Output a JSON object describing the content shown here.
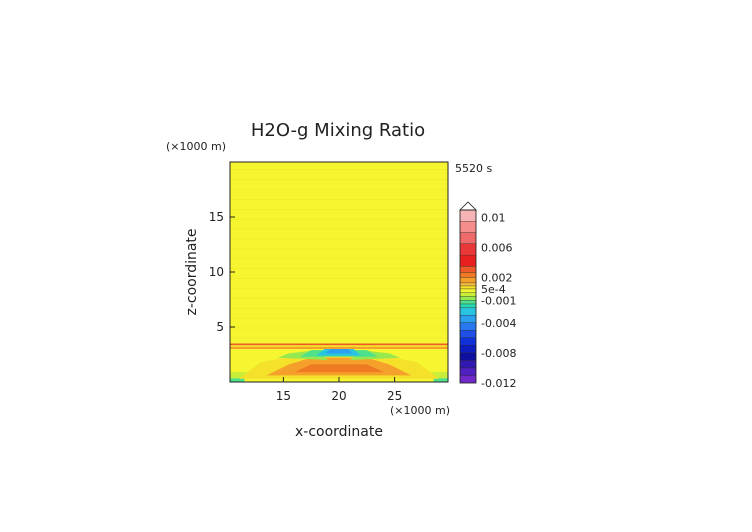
{
  "chart_data": {
    "type": "heatmap",
    "title": "H2O-g Mixing Ratio",
    "time_label": "5520 s",
    "xlabel": "x-coordinate",
    "ylabel": "z-coordinate",
    "x_unit": "(×1000 m)",
    "y_unit": "(×1000 m)",
    "xlim": [
      10.2,
      29.8
    ],
    "ylim": [
      0,
      20
    ],
    "x_ticks": [
      15,
      20,
      25
    ],
    "y_ticks": [
      5,
      10,
      15
    ],
    "colorbar": {
      "labels": [
        "0.01",
        "0.006",
        "0.002",
        "5e-4",
        "-0.001",
        "-0.004",
        "-0.008",
        "-0.012"
      ],
      "label_values": [
        0.01,
        0.006,
        0.002,
        0.0005,
        -0.001,
        -0.004,
        -0.008,
        -0.012
      ],
      "range": [
        -0.012,
        0.011
      ],
      "extend": "max",
      "levels": [
        {
          "from": 0.0095,
          "to": 0.011,
          "color": "#f7b4b4"
        },
        {
          "from": 0.008,
          "to": 0.0095,
          "color": "#f58d8d"
        },
        {
          "from": 0.0065,
          "to": 0.008,
          "color": "#ef6a6a"
        },
        {
          "from": 0.005,
          "to": 0.0065,
          "color": "#e83838"
        },
        {
          "from": 0.0035,
          "to": 0.005,
          "color": "#e82020"
        },
        {
          "from": 0.0027,
          "to": 0.0035,
          "color": "#ef5a28"
        },
        {
          "from": 0.002,
          "to": 0.0027,
          "color": "#f07a24"
        },
        {
          "from": 0.0013,
          "to": 0.002,
          "color": "#f5a02a"
        },
        {
          "from": 0.0009,
          "to": 0.0013,
          "color": "#f5c040"
        },
        {
          "from": 0.0005,
          "to": 0.0009,
          "color": "#f5e02a"
        },
        {
          "from": 0.0,
          "to": 0.0005,
          "color": "#f5f530"
        },
        {
          "from": -0.0005,
          "to": 0.0,
          "color": "#c8ee3a"
        },
        {
          "from": -0.001,
          "to": -0.0005,
          "color": "#96e850"
        },
        {
          "from": -0.0015,
          "to": -0.001,
          "color": "#4ee08a"
        },
        {
          "from": -0.002,
          "to": -0.0015,
          "color": "#28d8b4"
        },
        {
          "from": -0.003,
          "to": -0.002,
          "color": "#28c4e0"
        },
        {
          "from": -0.004,
          "to": -0.003,
          "color": "#2aa0ee"
        },
        {
          "from": -0.005,
          "to": -0.004,
          "color": "#2878f0"
        },
        {
          "from": -0.006,
          "to": -0.005,
          "color": "#1c50e8"
        },
        {
          "from": -0.007,
          "to": -0.006,
          "color": "#1030d8"
        },
        {
          "from": -0.008,
          "to": -0.007,
          "color": "#0c1cc0"
        },
        {
          "from": -0.009,
          "to": -0.008,
          "color": "#1010a0"
        },
        {
          "from": -0.01,
          "to": -0.009,
          "color": "#3018b0"
        },
        {
          "from": -0.011,
          "to": -0.01,
          "color": "#5020c0"
        },
        {
          "from": -0.012,
          "to": -0.011,
          "color": "#7028c8"
        }
      ]
    },
    "field": {
      "background_color": "#f5f530",
      "regions": [
        {
          "shape": "band",
          "y0": 0.0,
          "y1": 0.35,
          "x0": 10.2,
          "x1": 11.5,
          "color": "#4ee08a"
        },
        {
          "shape": "band",
          "y0": 0.0,
          "y1": 0.35,
          "x0": 28.5,
          "x1": 29.8,
          "color": "#4ee08a"
        },
        {
          "shape": "band",
          "y0": 0.35,
          "y1": 0.9,
          "x0": 10.2,
          "x1": 29.8,
          "color": "#c8ee3a"
        },
        {
          "shape": "poly",
          "color": "#f5e02a",
          "points": [
            [
              11.0,
              0.3
            ],
            [
              29.0,
              0.3
            ],
            [
              27.0,
              1.8
            ],
            [
              24.0,
              2.4
            ],
            [
              16.0,
              2.4
            ],
            [
              13.0,
              1.8
            ]
          ]
        },
        {
          "shape": "poly",
          "color": "#f5a02a",
          "points": [
            [
              13.5,
              0.6
            ],
            [
              26.5,
              0.6
            ],
            [
              24.5,
              1.6
            ],
            [
              22.5,
              2.2
            ],
            [
              17.5,
              2.2
            ],
            [
              15.5,
              1.6
            ]
          ]
        },
        {
          "shape": "poly",
          "color": "#f07a24",
          "points": [
            [
              16.0,
              0.9
            ],
            [
              24.0,
              0.9
            ],
            [
              22.5,
              1.6
            ],
            [
              17.5,
              1.6
            ]
          ]
        },
        {
          "shape": "poly",
          "color": "#96e850",
          "points": [
            [
              14.5,
              2.2
            ],
            [
              19.0,
              2.0
            ],
            [
              18.0,
              2.9
            ],
            [
              15.5,
              2.6
            ]
          ]
        },
        {
          "shape": "poly",
          "color": "#96e850",
          "points": [
            [
              21.0,
              2.0
            ],
            [
              25.5,
              2.2
            ],
            [
              24.5,
              2.6
            ],
            [
              22.0,
              2.9
            ]
          ]
        },
        {
          "shape": "poly",
          "color": "#4ee08a",
          "points": [
            [
              16.5,
              2.3
            ],
            [
              23.5,
              2.3
            ],
            [
              22.5,
              2.9
            ],
            [
              17.5,
              2.9
            ]
          ]
        },
        {
          "shape": "poly",
          "color": "#28c4e0",
          "points": [
            [
              18.0,
              2.4
            ],
            [
              22.0,
              2.4
            ],
            [
              21.3,
              3.0
            ],
            [
              18.7,
              3.0
            ]
          ]
        },
        {
          "shape": "poly",
          "color": "#2aa0ee",
          "points": [
            [
              18.8,
              2.6
            ],
            [
              21.2,
              2.6
            ],
            [
              20.8,
              3.0
            ],
            [
              19.2,
              3.0
            ]
          ]
        },
        {
          "shape": "band",
          "y0": 3.0,
          "y1": 3.2,
          "x0": 10.2,
          "x1": 29.8,
          "color": "#f5a02a"
        },
        {
          "shape": "band",
          "y0": 3.2,
          "y1": 3.35,
          "x0": 10.2,
          "x1": 29.8,
          "color": "#f5e02a"
        },
        {
          "shape": "band",
          "y0": 3.35,
          "y1": 3.5,
          "x0": 10.2,
          "x1": 29.8,
          "color": "#ef5a28"
        }
      ]
    }
  }
}
